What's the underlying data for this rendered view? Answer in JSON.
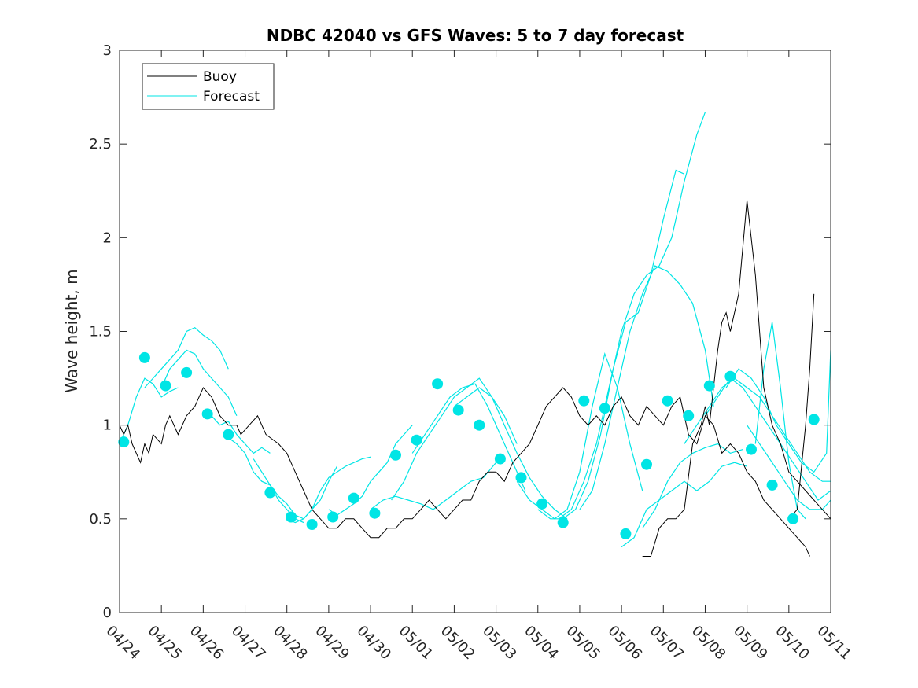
{
  "chart_data": {
    "type": "line",
    "title": "NDBC 42040 vs GFS Waves: 5 to 7 day forecast",
    "xlabel": "",
    "ylabel": "Wave height, m",
    "xlim": [
      "04/24",
      "05/11"
    ],
    "ylim": [
      0,
      3
    ],
    "yticks": [
      0,
      0.5,
      1,
      1.5,
      2,
      2.5,
      3
    ],
    "ytick_labels": [
      "0",
      "0.5",
      "1",
      "1.5",
      "2",
      "2.5",
      "3"
    ],
    "xtick_labels": [
      "04/24",
      "04/25",
      "04/26",
      "04/27",
      "04/28",
      "04/29",
      "04/30",
      "05/01",
      "05/02",
      "05/03",
      "05/04",
      "05/05",
      "05/06",
      "05/07",
      "05/08",
      "05/09",
      "05/10",
      "05/11"
    ],
    "grid": false,
    "legend": {
      "location": "top-left",
      "entries": [
        {
          "label": "Buoy",
          "color": "#000000"
        },
        {
          "label": "Forecast",
          "color": "#00e5e5"
        }
      ]
    },
    "colors": {
      "buoy": "#000000",
      "forecast": "#00e5e5",
      "markers": "#00e5e5"
    },
    "series": [
      {
        "name": "Buoy",
        "x_day": [
          0,
          0.1,
          0.2,
          0.3,
          0.4,
          0.5,
          0.6,
          0.7,
          0.8,
          1.0,
          1.1,
          1.2,
          1.4,
          1.5,
          1.6,
          1.8,
          2.0,
          2.2,
          2.4,
          2.6,
          2.8,
          2.9,
          3.1,
          3.3,
          3.5,
          3.8,
          4.0,
          4.2,
          4.4,
          4.6,
          4.8,
          5.0,
          5.2,
          5.4,
          5.6,
          5.8,
          6.0,
          6.2,
          6.4,
          6.6,
          6.8,
          7.0,
          7.2,
          7.4,
          7.6,
          7.8,
          8.0,
          8.2,
          8.4,
          8.6,
          8.8,
          9.0,
          9.2,
          9.4,
          9.6,
          9.8,
          10.0,
          10.2,
          10.4,
          10.6,
          10.8,
          11.0,
          11.2,
          11.4,
          11.6,
          11.8,
          12.0,
          12.2,
          12.4,
          12.6,
          12.8,
          13.0,
          13.2,
          13.4,
          13.6,
          13.8,
          14.0,
          14.2,
          14.4,
          14.6,
          14.8,
          15.0,
          15.2,
          15.4,
          15.6,
          15.8,
          16.0,
          16.2,
          16.4,
          16.5
        ],
        "values": [
          1.0,
          0.95,
          1.0,
          0.9,
          0.85,
          0.8,
          0.9,
          0.85,
          0.95,
          0.9,
          1.0,
          1.05,
          0.95,
          1.0,
          1.05,
          1.1,
          1.2,
          1.15,
          1.05,
          1.0,
          1.0,
          0.95,
          1.0,
          1.05,
          0.95,
          0.9,
          0.85,
          0.75,
          0.65,
          0.55,
          0.5,
          0.45,
          0.45,
          0.5,
          0.5,
          0.45,
          0.4,
          0.4,
          0.45,
          0.45,
          0.5,
          0.5,
          0.55,
          0.6,
          0.55,
          0.5,
          0.55,
          0.6,
          0.6,
          0.7,
          0.75,
          0.75,
          0.7,
          0.8,
          0.85,
          0.9,
          1.0,
          1.1,
          1.15,
          1.2,
          1.15,
          1.05,
          1.0,
          1.05,
          1.0,
          1.1,
          1.15,
          1.05,
          1.0,
          1.1,
          1.05,
          1.0,
          1.1,
          1.15,
          0.95,
          0.9,
          1.05,
          1.0,
          0.85,
          0.9,
          0.85,
          0.75,
          0.7,
          0.6,
          0.55,
          0.5,
          0.45,
          0.4,
          0.35,
          0.3
        ]
      },
      {
        "name": "Buoy (continued)",
        "x_day": [
          12.5,
          12.7,
          12.9,
          13.1,
          13.3,
          13.5,
          13.7,
          13.9,
          14.0,
          14.1,
          14.2,
          14.3,
          14.4,
          14.5,
          14.6,
          14.8,
          15.0,
          15.2,
          15.4,
          15.6,
          15.8,
          16.0,
          16.2,
          16.4,
          16.6,
          16.8,
          17.0
        ],
        "values": [
          0.3,
          0.3,
          0.45,
          0.5,
          0.5,
          0.55,
          0.9,
          1.0,
          1.1,
          1.0,
          1.2,
          1.4,
          1.55,
          1.6,
          1.5,
          1.7,
          2.2,
          1.8,
          1.2,
          1.0,
          0.9,
          0.75,
          0.7,
          0.65,
          0.6,
          0.55,
          0.5
        ]
      },
      {
        "name": "Buoy (end)",
        "x_day": [
          16.0,
          16.2,
          16.4,
          16.5,
          16.6
        ],
        "values": [
          0.5,
          0.55,
          1.0,
          1.3,
          1.7
        ]
      }
    ],
    "forecast_segments": [
      {
        "x_day": [
          0.0,
          0.2,
          0.4,
          0.6,
          0.8,
          1.0,
          1.2,
          1.4
        ],
        "values": [
          0.9,
          1.0,
          1.15,
          1.25,
          1.22,
          1.15,
          1.18,
          1.2
        ]
      },
      {
        "x_day": [
          0.6,
          0.8,
          1.0,
          1.2,
          1.4,
          1.6,
          1.8,
          2.0,
          2.2,
          2.4,
          2.6
        ],
        "values": [
          1.2,
          1.25,
          1.3,
          1.35,
          1.4,
          1.5,
          1.52,
          1.48,
          1.45,
          1.4,
          1.3
        ]
      },
      {
        "x_day": [
          1.0,
          1.2,
          1.4,
          1.6,
          1.8,
          2.0,
          2.2,
          2.4,
          2.6,
          2.8
        ],
        "values": [
          1.2,
          1.3,
          1.35,
          1.4,
          1.38,
          1.3,
          1.25,
          1.2,
          1.15,
          1.05
        ]
      },
      {
        "x_day": [
          2.0,
          2.2,
          2.4,
          2.6,
          2.8,
          3.0,
          3.2,
          3.4,
          3.6
        ],
        "values": [
          1.05,
          1.05,
          1.0,
          1.02,
          0.95,
          0.9,
          0.85,
          0.88,
          0.85
        ]
      },
      {
        "x_day": [
          2.5,
          2.8,
          3.0,
          3.2,
          3.4,
          3.6,
          3.8,
          4.0,
          4.2,
          4.4
        ],
        "values": [
          0.95,
          0.9,
          0.85,
          0.75,
          0.7,
          0.68,
          0.6,
          0.55,
          0.5,
          0.48
        ]
      },
      {
        "x_day": [
          3.2,
          3.4,
          3.6,
          3.8,
          4.0,
          4.2,
          4.4,
          4.6,
          4.8,
          5.0,
          5.2
        ],
        "values": [
          0.82,
          0.75,
          0.68,
          0.62,
          0.58,
          0.52,
          0.5,
          0.55,
          0.6,
          0.7,
          0.78
        ]
      },
      {
        "x_day": [
          4.0,
          4.2,
          4.4,
          4.6,
          4.8,
          5.0,
          5.2,
          5.4,
          5.6,
          5.8,
          6.0
        ],
        "values": [
          0.5,
          0.48,
          0.5,
          0.55,
          0.65,
          0.72,
          0.75,
          0.78,
          0.8,
          0.82,
          0.83
        ]
      },
      {
        "x_day": [
          5.0,
          5.2,
          5.4,
          5.6,
          5.8,
          6.0,
          6.2,
          6.4,
          6.6,
          6.8,
          7.0
        ],
        "values": [
          0.55,
          0.52,
          0.55,
          0.58,
          0.62,
          0.7,
          0.75,
          0.8,
          0.9,
          0.95,
          1.0
        ]
      },
      {
        "x_day": [
          6.0,
          6.3,
          6.6,
          6.9,
          7.2,
          7.5,
          7.8,
          8.1,
          8.4,
          8.7,
          9.0
        ],
        "values": [
          0.55,
          0.6,
          0.62,
          0.6,
          0.58,
          0.55,
          0.6,
          0.65,
          0.7,
          0.72,
          0.8
        ]
      },
      {
        "x_day": [
          6.5,
          6.8,
          7.1,
          7.4,
          7.7,
          8.0,
          8.3,
          8.6,
          8.9,
          9.2,
          9.5
        ],
        "values": [
          0.6,
          0.7,
          0.85,
          0.95,
          1.05,
          1.15,
          1.2,
          1.25,
          1.15,
          1.05,
          0.9
        ]
      },
      {
        "x_day": [
          7.0,
          7.3,
          7.6,
          7.9,
          8.2,
          8.5,
          8.8,
          9.1,
          9.4,
          9.7
        ],
        "values": [
          0.85,
          0.95,
          1.05,
          1.15,
          1.2,
          1.22,
          1.1,
          0.95,
          0.8,
          0.65
        ]
      },
      {
        "x_day": [
          8.0,
          8.3,
          8.6,
          8.9,
          9.2,
          9.5,
          9.8,
          10.1,
          10.4,
          10.7
        ],
        "values": [
          1.1,
          1.15,
          1.2,
          1.15,
          1.0,
          0.85,
          0.72,
          0.62,
          0.55,
          0.5
        ]
      },
      {
        "x_day": [
          9.5,
          9.8,
          10.1,
          10.4,
          10.7,
          11.0,
          11.3,
          11.6,
          11.9,
          12.2,
          12.5
        ],
        "values": [
          0.7,
          0.6,
          0.55,
          0.5,
          0.55,
          0.75,
          1.1,
          1.38,
          1.2,
          0.9,
          0.65
        ]
      },
      {
        "x_day": [
          10.0,
          10.3,
          10.6,
          10.9,
          11.2,
          11.5,
          11.8,
          12.1,
          12.4,
          12.7,
          13.0,
          13.3,
          13.5
        ],
        "values": [
          0.55,
          0.5,
          0.5,
          0.55,
          0.7,
          0.95,
          1.3,
          1.55,
          1.6,
          1.8,
          2.1,
          2.36,
          2.34
        ]
      },
      {
        "x_day": [
          10.5,
          10.8,
          11.1,
          11.4,
          11.7,
          12.0,
          12.3,
          12.6,
          12.9,
          13.2,
          13.5,
          13.8,
          14.0
        ],
        "values": [
          0.5,
          0.55,
          0.7,
          0.9,
          1.2,
          1.5,
          1.7,
          1.8,
          1.85,
          2.0,
          2.3,
          2.55,
          2.67
        ]
      },
      {
        "x_day": [
          11.0,
          11.3,
          11.6,
          11.9,
          12.2,
          12.5,
          12.8,
          13.1,
          13.4,
          13.7,
          14.0,
          14.2
        ],
        "values": [
          0.55,
          0.65,
          0.9,
          1.2,
          1.5,
          1.7,
          1.85,
          1.82,
          1.75,
          1.65,
          1.4,
          1.1
        ]
      },
      {
        "x_day": [
          12.0,
          12.3,
          12.6,
          12.9,
          13.2,
          13.5,
          13.8,
          14.1,
          14.4,
          14.7,
          15.0
        ],
        "values": [
          0.35,
          0.4,
          0.55,
          0.6,
          0.65,
          0.7,
          0.65,
          0.7,
          0.78,
          0.8,
          0.78
        ]
      },
      {
        "x_day": [
          12.5,
          12.8,
          13.1,
          13.4,
          13.7,
          14.0,
          14.3,
          14.6,
          14.9
        ],
        "values": [
          0.45,
          0.55,
          0.7,
          0.8,
          0.85,
          0.88,
          0.9,
          0.85,
          0.87
        ]
      },
      {
        "x_day": [
          13.5,
          13.8,
          14.1,
          14.4,
          14.7,
          15.0,
          15.3,
          15.6,
          15.9,
          16.2,
          16.5,
          16.8,
          17.0
        ],
        "values": [
          0.9,
          1.0,
          1.1,
          1.2,
          1.25,
          1.2,
          1.15,
          1.05,
          0.95,
          0.85,
          0.75,
          0.7,
          0.7
        ]
      },
      {
        "x_day": [
          14.0,
          14.3,
          14.6,
          14.9,
          15.2,
          15.5,
          15.8,
          16.1,
          16.4,
          16.7,
          17.0
        ],
        "values": [
          1.05,
          1.15,
          1.25,
          1.2,
          1.1,
          1.0,
          0.9,
          0.8,
          0.7,
          0.6,
          0.65
        ]
      },
      {
        "x_day": [
          14.5,
          14.8,
          15.1,
          15.4,
          15.7,
          16.0,
          16.3,
          16.6,
          16.9,
          17.0
        ],
        "values": [
          1.2,
          1.3,
          1.25,
          1.15,
          1.0,
          0.9,
          0.8,
          0.75,
          0.85,
          1.4
        ]
      },
      {
        "x_day": [
          15.0,
          15.3,
          15.6,
          15.9,
          16.2,
          16.5,
          16.8,
          17.0
        ],
        "values": [
          1.0,
          0.9,
          0.8,
          0.7,
          0.6,
          0.55,
          0.55,
          0.6
        ]
      },
      {
        "x_day": [
          15.2,
          15.4,
          15.6,
          15.8,
          16.0,
          16.2,
          16.4
        ],
        "values": [
          0.9,
          1.3,
          1.55,
          1.2,
          0.8,
          0.55,
          0.5
        ]
      }
    ],
    "forecast_markers": {
      "x_day": [
        0.1,
        0.6,
        1.1,
        1.6,
        2.1,
        2.6,
        3.6,
        4.1,
        4.6,
        5.1,
        5.6,
        6.1,
        6.6,
        7.1,
        7.6,
        8.1,
        8.6,
        9.1,
        9.6,
        10.1,
        10.6,
        11.1,
        11.6,
        12.1,
        12.6,
        13.1,
        13.6,
        14.1,
        14.6,
        15.1,
        15.6,
        16.1,
        16.6
      ],
      "values": [
        0.91,
        1.36,
        1.21,
        1.28,
        1.06,
        0.95,
        0.64,
        0.51,
        0.47,
        0.51,
        0.61,
        0.53,
        0.84,
        0.92,
        1.22,
        1.08,
        1.0,
        0.82,
        0.72,
        0.58,
        0.48,
        1.13,
        1.09,
        0.42,
        0.79,
        1.13,
        1.05,
        1.21,
        1.26,
        0.87,
        0.68,
        0.5,
        1.03
      ]
    }
  }
}
